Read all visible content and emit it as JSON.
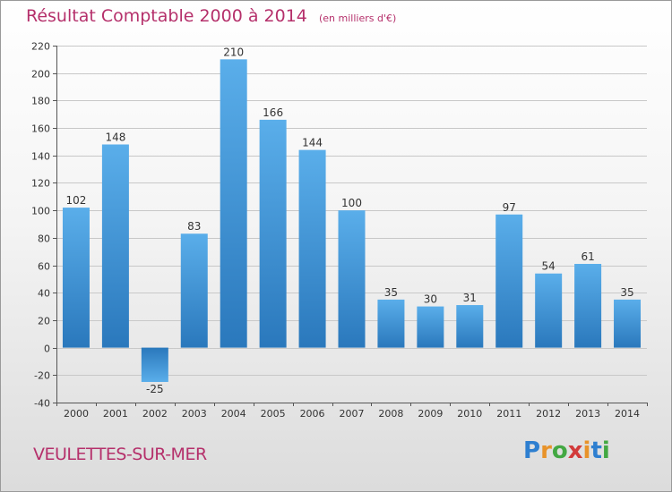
{
  "header": {
    "title": "Résultat Comptable 2000 à 2014",
    "subtitle": "(en milliers d'€)"
  },
  "footer": {
    "commune": "VEULETTES-SUR-MER",
    "brand": "Proxiti"
  },
  "colors": {
    "title": "#b5306b",
    "bar_light": "#5aaeea",
    "bar_dark": "#2a78bc",
    "grid": "#c8c8c8"
  },
  "chart_data": {
    "type": "bar",
    "title": "Résultat Comptable 2000 à 2014",
    "subtitle": "(en milliers d'€)",
    "categories": [
      "2000",
      "2001",
      "2002",
      "2003",
      "2004",
      "2005",
      "2006",
      "2007",
      "2008",
      "2009",
      "2010",
      "2011",
      "2012",
      "2013",
      "2014"
    ],
    "values": [
      102,
      148,
      -25,
      83,
      210,
      166,
      144,
      100,
      35,
      30,
      31,
      97,
      54,
      61,
      35
    ],
    "ylim": [
      -40,
      220
    ],
    "yticks": [
      -40,
      -20,
      0,
      20,
      40,
      60,
      80,
      100,
      120,
      140,
      160,
      180,
      200,
      220
    ],
    "grid": true,
    "data_labels": true
  }
}
